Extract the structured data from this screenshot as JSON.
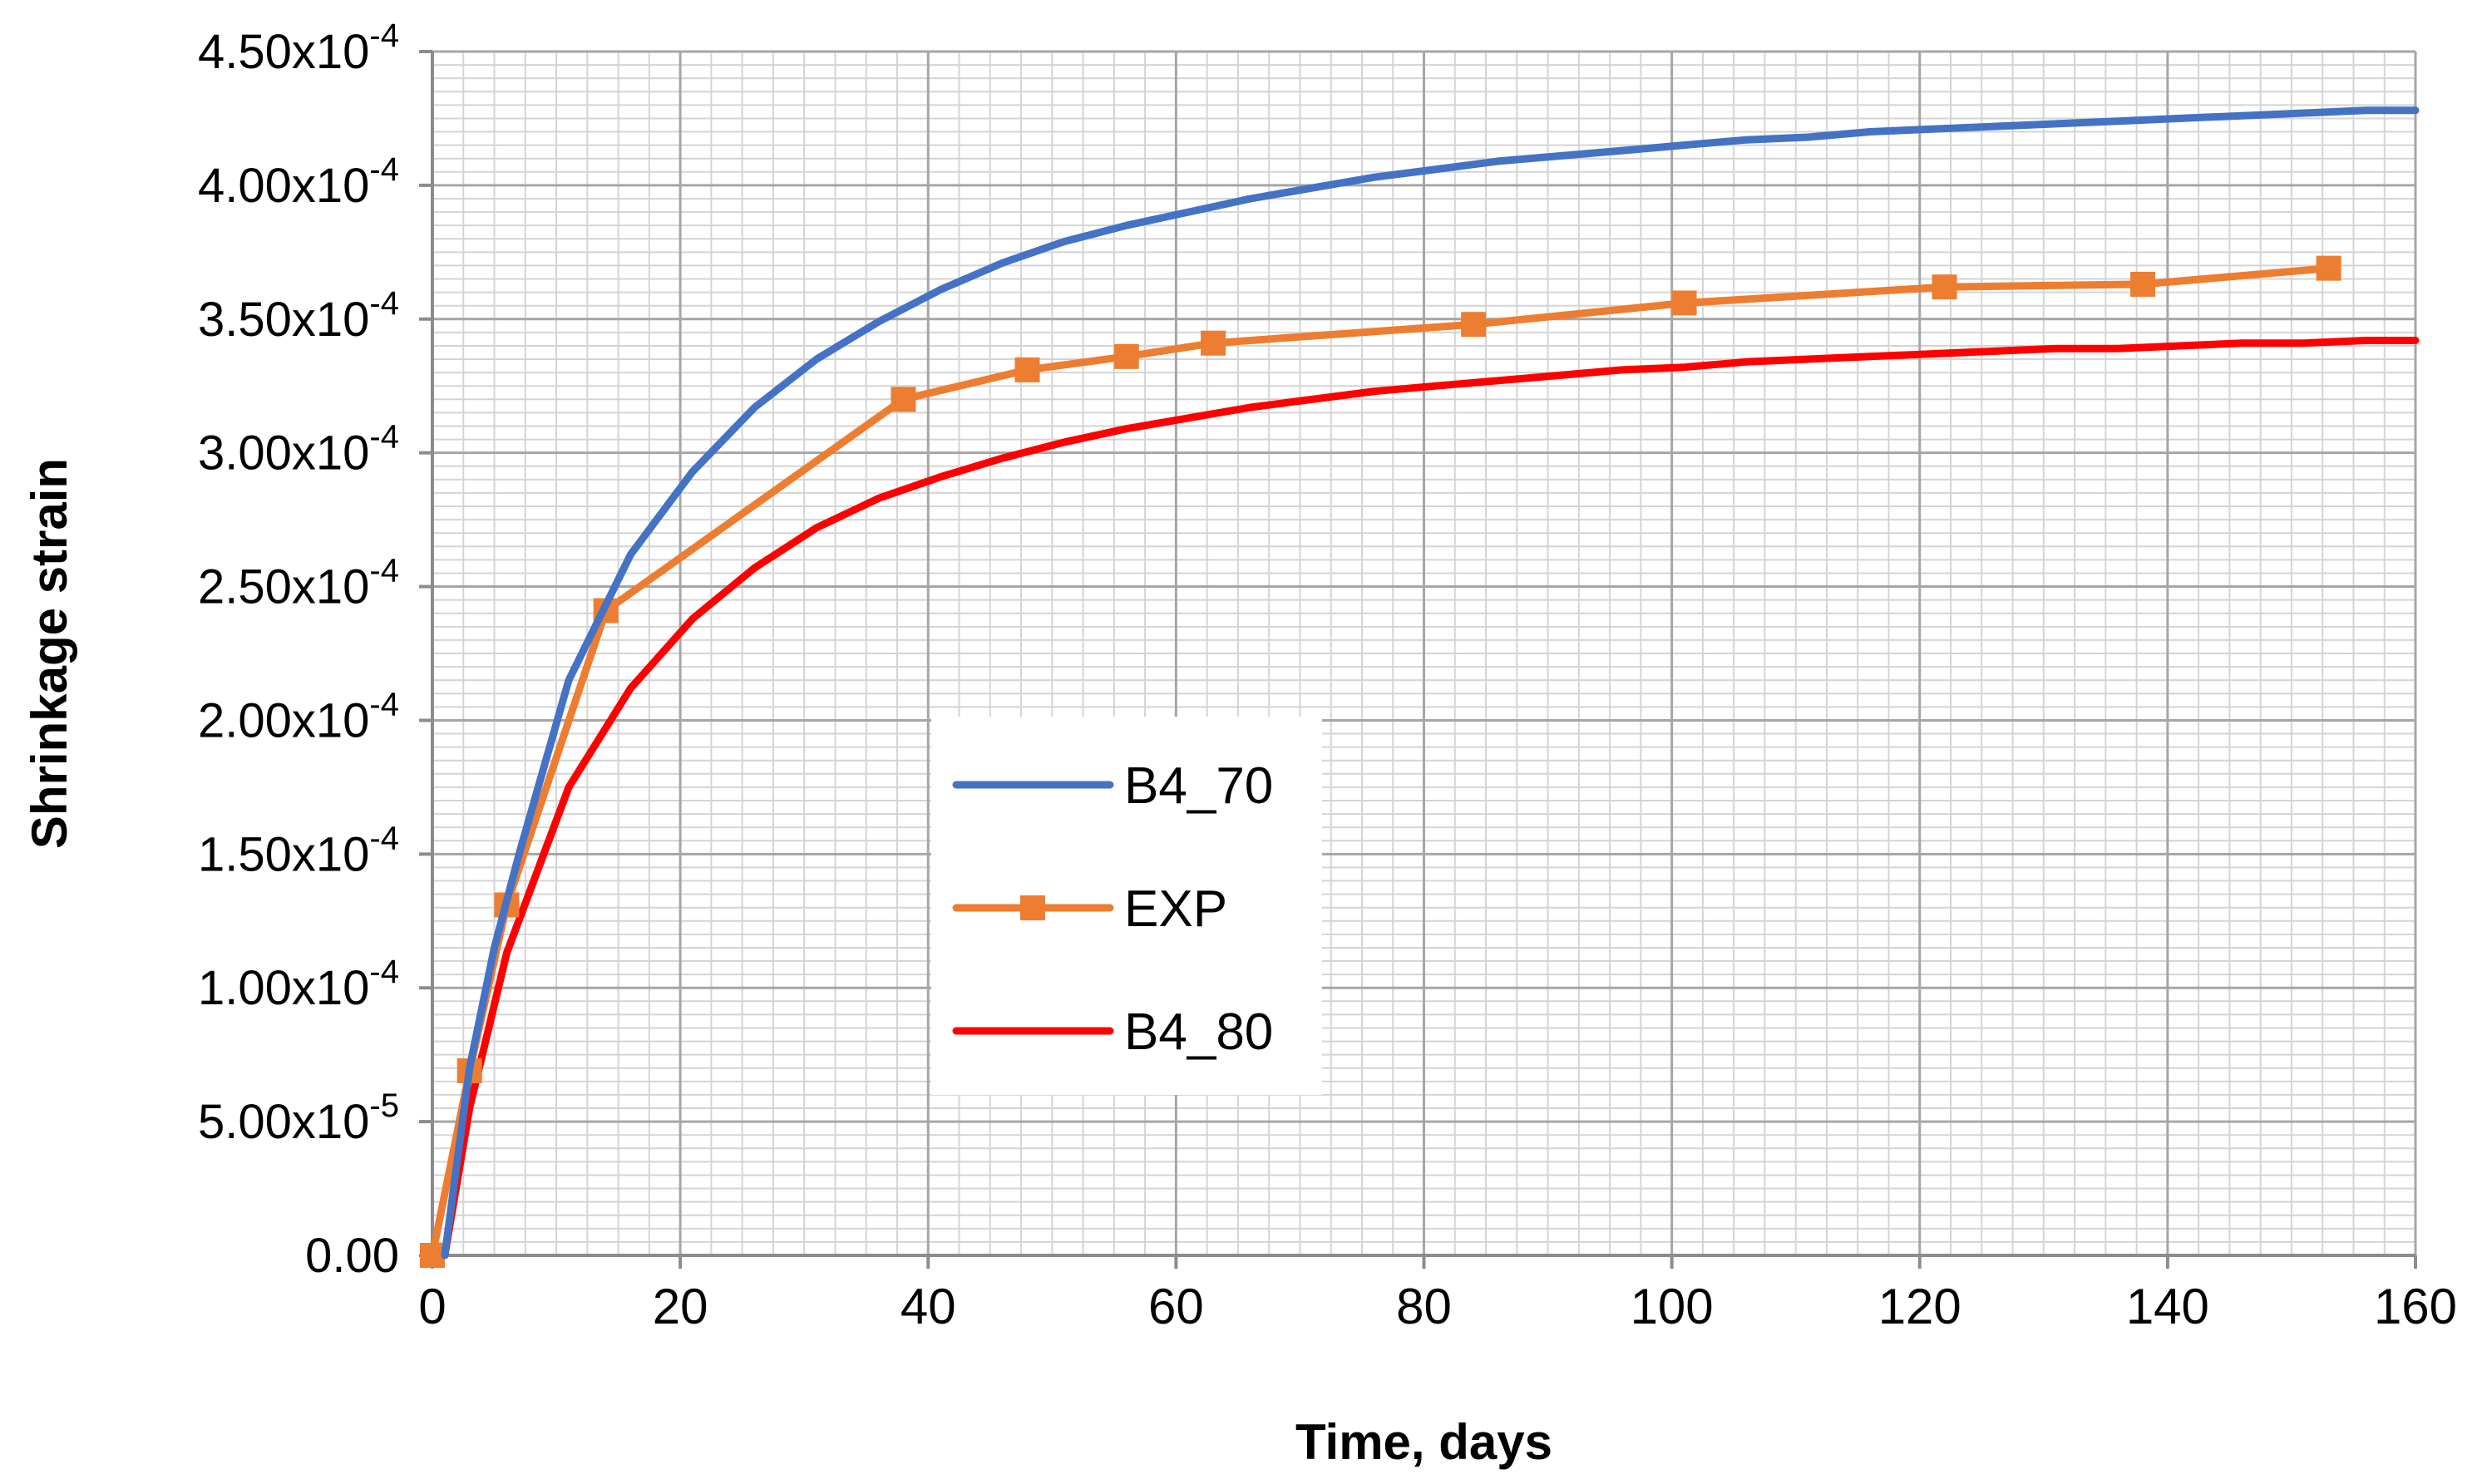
{
  "chart_data": {
    "type": "line",
    "title": "",
    "xlabel": "Time, days",
    "ylabel": "Shrinkage strain",
    "xlim": [
      0,
      160
    ],
    "ylim": [
      0,
      0.00045
    ],
    "grid": true,
    "x_ticks": [
      0,
      20,
      40,
      60,
      80,
      100,
      120,
      140,
      160
    ],
    "x_tick_labels": [
      "0",
      "20",
      "40",
      "60",
      "80",
      "100",
      "120",
      "140",
      "160"
    ],
    "y_ticks": [
      0,
      5e-05,
      0.0001,
      0.00015,
      0.0002,
      0.00025,
      0.0003,
      0.00035,
      0.0004,
      0.00045
    ],
    "y_tick_labels": [
      {
        "mantissa": "0.00",
        "exponent": ""
      },
      {
        "mantissa": "5.00x10",
        "exponent": "-5"
      },
      {
        "mantissa": "1.00x10",
        "exponent": "-4"
      },
      {
        "mantissa": "1.50x10",
        "exponent": "-4"
      },
      {
        "mantissa": "2.00x10",
        "exponent": "-4"
      },
      {
        "mantissa": "2.50x10",
        "exponent": "-4"
      },
      {
        "mantissa": "3.00x10",
        "exponent": "-4"
      },
      {
        "mantissa": "3.50x10",
        "exponent": "-4"
      },
      {
        "mantissa": "4.00x10",
        "exponent": "-4"
      },
      {
        "mantissa": "4.50x10",
        "exponent": "-4"
      }
    ],
    "legend_position": "center-left",
    "series": [
      {
        "name": "B4_70",
        "color": "#4472C4",
        "marker": "none",
        "x": [
          1,
          3,
          5,
          7,
          11,
          16,
          21,
          26,
          31,
          36,
          41,
          46,
          51,
          56,
          61,
          66,
          71,
          76,
          81,
          86,
          91,
          96,
          101,
          106,
          111,
          116,
          121,
          126,
          131,
          136,
          141,
          146,
          151,
          156,
          160
        ],
        "y": [
          0.0,
          7e-05,
          0.000115,
          0.00015,
          0.000215,
          0.000262,
          0.000293,
          0.000317,
          0.000335,
          0.000349,
          0.000361,
          0.000371,
          0.000379,
          0.000385,
          0.00039,
          0.000395,
          0.000399,
          0.000403,
          0.000406,
          0.000409,
          0.000411,
          0.000413,
          0.000415,
          0.000417,
          0.000418,
          0.00042,
          0.000421,
          0.000422,
          0.000423,
          0.000424,
          0.000425,
          0.000426,
          0.000427,
          0.000428,
          0.000428
        ]
      },
      {
        "name": "EXP",
        "color": "#ED7D31",
        "marker": "square",
        "x": [
          0,
          3,
          6,
          14,
          38,
          48,
          56,
          63,
          84,
          101,
          122,
          138,
          153
        ],
        "y": [
          0.0,
          6.9e-05,
          0.000131,
          0.000241,
          0.00032,
          0.000331,
          0.000336,
          0.000341,
          0.000348,
          0.000356,
          0.000362,
          0.000363,
          0.000369
        ]
      },
      {
        "name": "B4_80",
        "color": "#FF0000",
        "marker": "none",
        "x": [
          1,
          3,
          6,
          11,
          16,
          21,
          26,
          31,
          36,
          41,
          46,
          51,
          56,
          61,
          66,
          71,
          76,
          81,
          86,
          91,
          96,
          101,
          106,
          111,
          116,
          121,
          126,
          131,
          136,
          141,
          146,
          151,
          156,
          160
        ],
        "y": [
          0.0,
          5.5e-05,
          0.000113,
          0.000175,
          0.000212,
          0.000238,
          0.000257,
          0.000272,
          0.000283,
          0.000291,
          0.000298,
          0.000304,
          0.000309,
          0.000313,
          0.000317,
          0.00032,
          0.000323,
          0.000325,
          0.000327,
          0.000329,
          0.000331,
          0.000332,
          0.000334,
          0.000335,
          0.000336,
          0.000337,
          0.000338,
          0.000339,
          0.000339,
          0.00034,
          0.000341,
          0.000341,
          0.000342,
          0.000342
        ]
      }
    ]
  }
}
